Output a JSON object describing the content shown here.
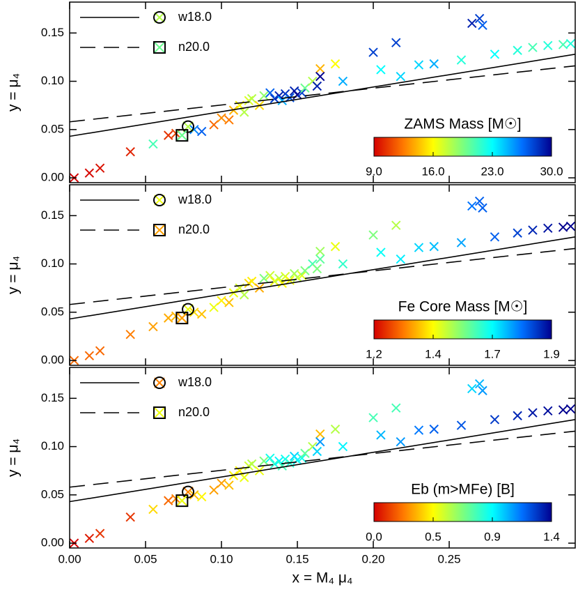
{
  "chart_data": [
    {
      "type": "scatter",
      "ylabel": "y = μ₄",
      "xlim": [
        0,
        0.333
      ],
      "ylim": [
        -0.005,
        0.182
      ],
      "xticks": [
        0,
        0.05,
        0.1,
        0.15,
        0.2,
        0.25
      ],
      "yticks": [
        {
          "value": 0,
          "label": "0.00"
        },
        {
          "value": 0.05,
          "label": "0.05"
        },
        {
          "value": 0.1,
          "label": "0.10"
        },
        {
          "value": 0.15,
          "label": "0.15"
        }
      ],
      "points": {
        "x": [
          0.003,
          0.013,
          0.02,
          0.04,
          0.055,
          0.065,
          0.07,
          0.074,
          0.082,
          0.087,
          0.095,
          0.1,
          0.105,
          0.108,
          0.112,
          0.115,
          0.118,
          0.12,
          0.125,
          0.128,
          0.132,
          0.135,
          0.138,
          0.142,
          0.145,
          0.148,
          0.15,
          0.153,
          0.14,
          0.155,
          0.16,
          0.163,
          0.165,
          0.165,
          0.175,
          0.18,
          0.2,
          0.205,
          0.215,
          0.218,
          0.23,
          0.24,
          0.258,
          0.265,
          0.27,
          0.272,
          0.28,
          0.295,
          0.305,
          0.315,
          0.325,
          0.33
        ],
        "y": [
          0,
          0.005,
          0.01,
          0.027,
          0.035,
          0.044,
          0.046,
          0.044,
          0.05,
          0.048,
          0.055,
          0.062,
          0.06,
          0.07,
          0.075,
          0.068,
          0.08,
          0.082,
          0.075,
          0.085,
          0.088,
          0.082,
          0.085,
          0.087,
          0.083,
          0.09,
          0.086,
          0.088,
          0.08,
          0.093,
          0.1,
          0.095,
          0.113,
          0.105,
          0.118,
          0.1,
          0.13,
          0.112,
          0.14,
          0.105,
          0.117,
          0.118,
          0.122,
          0.16,
          0.165,
          0.158,
          0.128,
          0.132,
          0.135,
          0.137,
          0.138,
          0.139
        ],
        "c": [
          9,
          9.2,
          9.5,
          10,
          21,
          10.5,
          11,
          20,
          26,
          27,
          12,
          13,
          12.5,
          14,
          16,
          18,
          17,
          18,
          15,
          19,
          27,
          28,
          29,
          28.5,
          27.5,
          29,
          30,
          28,
          25,
          20,
          18,
          29,
          14,
          30,
          16,
          25,
          28,
          23,
          28,
          24,
          24,
          25,
          22,
          29,
          28,
          27,
          23,
          22,
          21,
          22,
          21,
          22
        ]
      },
      "series": [
        {
          "name": "w18.0",
          "line": "solid",
          "x": [
            0,
            0.333
          ],
          "y": [
            0.043,
            0.128
          ],
          "marker": "circle",
          "marker_x": 0.078,
          "marker_y": 0.053,
          "marker_c": 18
        },
        {
          "name": "n20.0",
          "line": "dashed",
          "x": [
            0,
            0.333
          ],
          "y": [
            0.058,
            0.116
          ],
          "marker": "square",
          "marker_x": 0.074,
          "marker_y": 0.044,
          "marker_c": 20
        }
      ],
      "colorbar": {
        "title": "ZAMS Mass [M☉]",
        "clim": [
          9,
          30
        ],
        "ticks": [
          {
            "value": 9,
            "label": "9.0"
          },
          {
            "value": 16,
            "label": "16.0"
          },
          {
            "value": 23,
            "label": "23.0"
          },
          {
            "value": 30,
            "label": "30.0"
          }
        ],
        "colormap": [
          "#d40000",
          "#ff7a00",
          "#ffff00",
          "#7dff7d",
          "#00ffff",
          "#0070ff",
          "#00008f"
        ]
      }
    },
    {
      "type": "scatter",
      "ylabel": "y = μ₄",
      "xlim": [
        0,
        0.333
      ],
      "ylim": [
        -0.005,
        0.182
      ],
      "xticks": [
        0,
        0.05,
        0.1,
        0.15,
        0.2,
        0.25
      ],
      "yticks": [
        {
          "value": 0,
          "label": "0.00"
        },
        {
          "value": 0.05,
          "label": "0.05"
        },
        {
          "value": 0.1,
          "label": "0.10"
        },
        {
          "value": 0.15,
          "label": "0.15"
        }
      ],
      "points": {
        "x": [
          0.003,
          0.013,
          0.02,
          0.04,
          0.055,
          0.065,
          0.07,
          0.074,
          0.082,
          0.087,
          0.095,
          0.1,
          0.105,
          0.108,
          0.112,
          0.115,
          0.118,
          0.12,
          0.125,
          0.128,
          0.132,
          0.135,
          0.138,
          0.142,
          0.145,
          0.148,
          0.15,
          0.153,
          0.14,
          0.155,
          0.16,
          0.163,
          0.165,
          0.165,
          0.175,
          0.18,
          0.2,
          0.205,
          0.215,
          0.218,
          0.23,
          0.24,
          0.258,
          0.265,
          0.27,
          0.272,
          0.28,
          0.295,
          0.305,
          0.315,
          0.325,
          0.33
        ],
        "y": [
          0,
          0.005,
          0.01,
          0.027,
          0.035,
          0.044,
          0.046,
          0.044,
          0.05,
          0.048,
          0.055,
          0.062,
          0.06,
          0.07,
          0.075,
          0.068,
          0.08,
          0.082,
          0.075,
          0.085,
          0.088,
          0.082,
          0.085,
          0.087,
          0.083,
          0.09,
          0.086,
          0.088,
          0.08,
          0.093,
          0.1,
          0.095,
          0.113,
          0.105,
          0.118,
          0.1,
          0.13,
          0.112,
          0.14,
          0.105,
          0.117,
          0.118,
          0.122,
          0.16,
          0.165,
          0.158,
          0.128,
          0.132,
          0.135,
          0.137,
          0.138,
          0.139
        ],
        "c": [
          1.3,
          1.3,
          1.3,
          1.32,
          1.35,
          1.36,
          1.37,
          1.33,
          1.4,
          1.38,
          1.45,
          1.42,
          1.38,
          1.45,
          1.47,
          1.5,
          1.4,
          1.42,
          1.36,
          1.55,
          1.48,
          1.45,
          1.5,
          1.47,
          1.44,
          1.52,
          1.49,
          1.46,
          1.43,
          1.55,
          1.6,
          1.55,
          1.52,
          1.58,
          1.45,
          1.62,
          1.55,
          1.66,
          1.5,
          1.68,
          1.7,
          1.72,
          1.74,
          1.78,
          1.8,
          1.8,
          1.8,
          1.83,
          1.86,
          1.88,
          1.9,
          1.9
        ]
      },
      "series": [
        {
          "name": "w18.0",
          "line": "solid",
          "x": [
            0,
            0.333
          ],
          "y": [
            0.043,
            0.128
          ],
          "marker": "circle",
          "marker_x": 0.078,
          "marker_y": 0.053,
          "marker_c": 1.45
        },
        {
          "name": "n20.0",
          "line": "dashed",
          "x": [
            0,
            0.333
          ],
          "y": [
            0.058,
            0.116
          ],
          "marker": "square",
          "marker_x": 0.074,
          "marker_y": 0.044,
          "marker_c": 1.35
        }
      ],
      "colorbar": {
        "title": "Fe Core Mass [M☉]",
        "clim": [
          1.2,
          1.9
        ],
        "ticks": [
          {
            "value": 1.2,
            "label": "1.2"
          },
          {
            "value": 1.4333,
            "label": "1.4"
          },
          {
            "value": 1.6667,
            "label": "1.7"
          },
          {
            "value": 1.9,
            "label": "1.9"
          }
        ],
        "colormap": [
          "#d40000",
          "#ff7a00",
          "#ffff00",
          "#7dff7d",
          "#00ffff",
          "#0070ff",
          "#00008f"
        ]
      }
    },
    {
      "type": "scatter",
      "ylabel": "y = μ₄",
      "xlabel": "x = M₄ μ₄",
      "xlim": [
        0,
        0.333
      ],
      "ylim": [
        -0.005,
        0.182
      ],
      "xticks": [
        {
          "value": 0,
          "label": "0.00"
        },
        {
          "value": 0.05,
          "label": "0.05"
        },
        {
          "value": 0.1,
          "label": "0.10"
        },
        {
          "value": 0.15,
          "label": "0.15"
        },
        {
          "value": 0.2,
          "label": "0.20"
        },
        {
          "value": 0.25,
          "label": "0.25"
        }
      ],
      "yticks": [
        {
          "value": 0,
          "label": "0.00"
        },
        {
          "value": 0.05,
          "label": "0.05"
        },
        {
          "value": 0.1,
          "label": "0.10"
        },
        {
          "value": 0.15,
          "label": "0.15"
        }
      ],
      "points": {
        "x": [
          0.003,
          0.013,
          0.02,
          0.04,
          0.055,
          0.065,
          0.07,
          0.074,
          0.082,
          0.087,
          0.095,
          0.1,
          0.105,
          0.108,
          0.112,
          0.115,
          0.118,
          0.12,
          0.125,
          0.128,
          0.132,
          0.135,
          0.138,
          0.142,
          0.145,
          0.148,
          0.15,
          0.153,
          0.14,
          0.155,
          0.16,
          0.163,
          0.165,
          0.165,
          0.175,
          0.18,
          0.2,
          0.205,
          0.215,
          0.218,
          0.23,
          0.24,
          0.258,
          0.265,
          0.27,
          0.272,
          0.28,
          0.295,
          0.305,
          0.315,
          0.325,
          0.33
        ],
        "y": [
          0,
          0.005,
          0.01,
          0.027,
          0.035,
          0.044,
          0.046,
          0.044,
          0.05,
          0.048,
          0.055,
          0.062,
          0.06,
          0.07,
          0.075,
          0.068,
          0.08,
          0.082,
          0.075,
          0.085,
          0.088,
          0.082,
          0.085,
          0.087,
          0.083,
          0.09,
          0.086,
          0.088,
          0.08,
          0.093,
          0.1,
          0.095,
          0.113,
          0.105,
          0.118,
          0.1,
          0.13,
          0.112,
          0.14,
          0.105,
          0.117,
          0.118,
          0.122,
          0.16,
          0.165,
          0.158,
          0.128,
          0.132,
          0.135,
          0.137,
          0.138,
          0.139
        ],
        "c": [
          0,
          0.05,
          0.1,
          0.1,
          0.4,
          0.2,
          0.25,
          0.4,
          0.35,
          0.45,
          0.3,
          0.3,
          0.35,
          0.45,
          0.45,
          0.5,
          0.55,
          0.6,
          0.5,
          0.7,
          0.9,
          0.85,
          0.95,
          0.9,
          0.85,
          1,
          0.95,
          0.9,
          0.8,
          0.75,
          0.6,
          1,
          0.35,
          1.1,
          0.6,
          0.95,
          0.8,
          1.05,
          0.8,
          1.1,
          1.15,
          1.2,
          1.22,
          1,
          1.05,
          1.1,
          1.28,
          1.32,
          1.35,
          1.37,
          1.4,
          1.4
        ]
      },
      "series": [
        {
          "name": "w18.0",
          "line": "solid",
          "x": [
            0,
            0.333
          ],
          "y": [
            0.043,
            0.128
          ],
          "marker": "circle",
          "marker_x": 0.078,
          "marker_y": 0.053,
          "marker_c": 0.25
        },
        {
          "name": "n20.0",
          "line": "dashed",
          "x": [
            0,
            0.333
          ],
          "y": [
            0.058,
            0.116
          ],
          "marker": "square",
          "marker_x": 0.074,
          "marker_y": 0.044,
          "marker_c": 0.5
        }
      ],
      "colorbar": {
        "title": "Eb (m>MFe) [B]",
        "clim": [
          0,
          1.4
        ],
        "ticks": [
          {
            "value": 0,
            "label": "0.0"
          },
          {
            "value": 0.4667,
            "label": "0.5"
          },
          {
            "value": 0.9333,
            "label": "0.9"
          },
          {
            "value": 1.4,
            "label": "1.4"
          }
        ],
        "colormap": [
          "#d40000",
          "#ff7a00",
          "#ffff00",
          "#7dff7d",
          "#00ffff",
          "#0070ff",
          "#00008f"
        ]
      }
    }
  ]
}
